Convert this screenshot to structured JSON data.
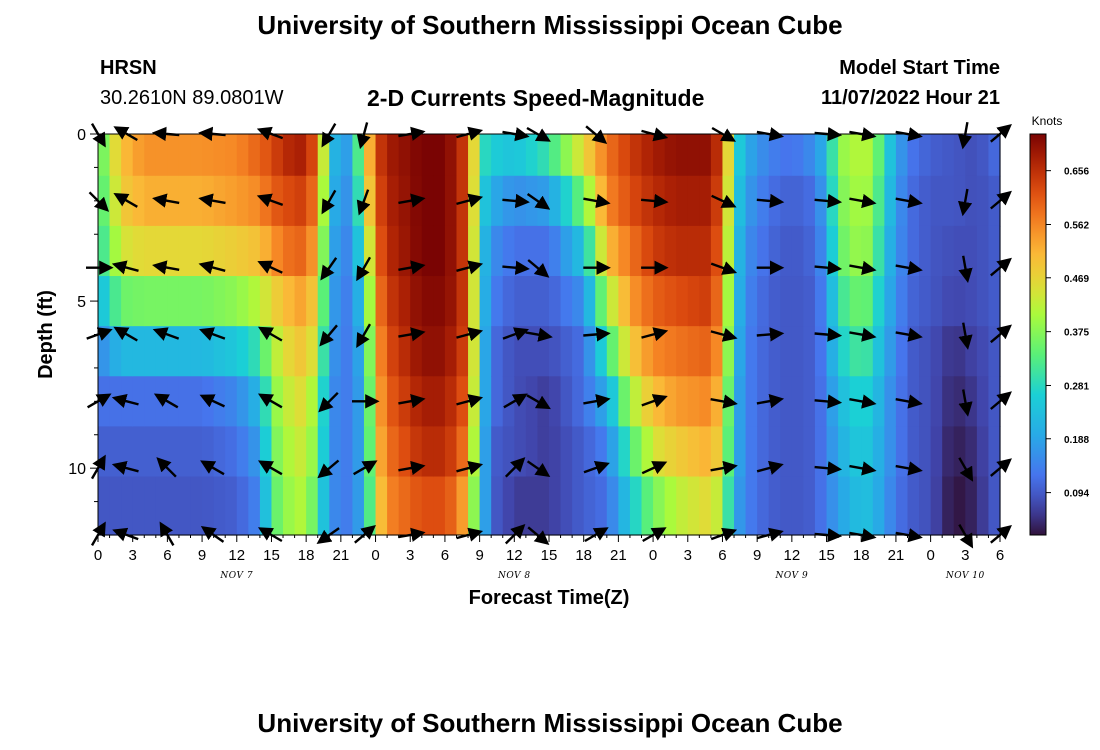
{
  "header": {
    "title": "University of Southern Mississippi Ocean Cube",
    "station": "HRSN",
    "location": "30.2610N  89.0801W",
    "subtitle": "2-D Currents Speed-Magnitude",
    "model_start_label": "Model Start Time",
    "model_start_value": "11/07/2022 Hour 21"
  },
  "footer": {
    "title": "University of Southern Mississippi Ocean Cube"
  },
  "colors": {
    "arrow": "#000000",
    "background": "#ffffff"
  },
  "chart_data": {
    "type": "heatmap",
    "xlabel": "Forecast Time(Z)",
    "ylabel": "Depth (ft)",
    "x_tick_labels": [
      "0",
      "3",
      "6",
      "9",
      "12",
      "15",
      "18",
      "21",
      "0",
      "3",
      "6",
      "9",
      "12",
      "15",
      "18",
      "21",
      "0",
      "3",
      "6",
      "9",
      "12",
      "15",
      "18",
      "21",
      "0",
      "3",
      "6"
    ],
    "x_range_hours": [
      0,
      78
    ],
    "date_labels": [
      {
        "label": "NOV 7",
        "hour": 12
      },
      {
        "label": "NOV 8",
        "hour": 36
      },
      {
        "label": "NOV 9",
        "hour": 60
      },
      {
        "label": "NOV 10",
        "hour": 75
      }
    ],
    "y_ticks": [
      0,
      5,
      10
    ],
    "ylim": [
      0,
      12
    ],
    "y_inverted": true,
    "colorbar": {
      "unit": "Knots",
      "ticks": [
        0.094,
        0.188,
        0.281,
        0.375,
        0.469,
        0.562,
        0.656
      ],
      "range": [
        0.02,
        0.72
      ]
    },
    "depths_ft": [
      0.5,
      2.0,
      3.5,
      5.0,
      6.5,
      8.0,
      9.5,
      11.0
    ],
    "time_profile": [
      {
        "h": 0,
        "v": [
          0.32,
          0.3,
          0.28,
          0.22,
          0.15,
          0.12,
          0.1,
          0.09
        ]
      },
      {
        "h": 2,
        "v": [
          0.5,
          0.48,
          0.44,
          0.35,
          0.22,
          0.12,
          0.1,
          0.09
        ]
      },
      {
        "h": 4,
        "v": [
          0.55,
          0.52,
          0.46,
          0.36,
          0.22,
          0.12,
          0.1,
          0.09
        ]
      },
      {
        "h": 9,
        "v": [
          0.55,
          0.52,
          0.46,
          0.36,
          0.22,
          0.12,
          0.1,
          0.09
        ]
      },
      {
        "h": 12,
        "v": [
          0.56,
          0.54,
          0.48,
          0.38,
          0.25,
          0.15,
          0.12,
          0.1
        ]
      },
      {
        "h": 14,
        "v": [
          0.6,
          0.56,
          0.5,
          0.42,
          0.3,
          0.22,
          0.18,
          0.15
        ]
      },
      {
        "h": 15,
        "v": [
          0.62,
          0.6,
          0.54,
          0.46,
          0.4,
          0.36,
          0.34,
          0.32
        ]
      },
      {
        "h": 16,
        "v": [
          0.66,
          0.62,
          0.58,
          0.5,
          0.45,
          0.42,
          0.4,
          0.38
        ]
      },
      {
        "h": 18,
        "v": [
          0.68,
          0.64,
          0.6,
          0.54,
          0.5,
          0.46,
          0.44,
          0.42
        ]
      },
      {
        "h": 19,
        "v": [
          0.58,
          0.55,
          0.5,
          0.45,
          0.4,
          0.36,
          0.34,
          0.3
        ]
      },
      {
        "h": 20,
        "v": [
          0.28,
          0.26,
          0.24,
          0.22,
          0.2,
          0.18,
          0.18,
          0.18
        ]
      },
      {
        "h": 21,
        "v": [
          0.14,
          0.13,
          0.12,
          0.12,
          0.12,
          0.12,
          0.12,
          0.12
        ]
      },
      {
        "h": 22,
        "v": [
          0.22,
          0.2,
          0.18,
          0.16,
          0.15,
          0.15,
          0.15,
          0.15
        ]
      },
      {
        "h": 23,
        "v": [
          0.42,
          0.38,
          0.3,
          0.25,
          0.22,
          0.2,
          0.2,
          0.2
        ]
      },
      {
        "h": 24,
        "v": [
          0.62,
          0.6,
          0.58,
          0.55,
          0.52,
          0.5,
          0.48,
          0.45
        ]
      },
      {
        "h": 25,
        "v": [
          0.68,
          0.67,
          0.66,
          0.64,
          0.62,
          0.6,
          0.58,
          0.56
        ]
      },
      {
        "h": 28,
        "v": [
          0.72,
          0.72,
          0.72,
          0.71,
          0.7,
          0.68,
          0.66,
          0.62
        ]
      },
      {
        "h": 30,
        "v": [
          0.72,
          0.72,
          0.72,
          0.71,
          0.7,
          0.68,
          0.66,
          0.62
        ]
      },
      {
        "h": 31,
        "v": [
          0.68,
          0.68,
          0.68,
          0.68,
          0.66,
          0.64,
          0.62,
          0.58
        ]
      },
      {
        "h": 32,
        "v": [
          0.62,
          0.62,
          0.62,
          0.62,
          0.62,
          0.6,
          0.56,
          0.5
        ]
      },
      {
        "h": 33,
        "v": [
          0.3,
          0.28,
          0.26,
          0.26,
          0.26,
          0.26,
          0.26,
          0.26
        ]
      },
      {
        "h": 34,
        "v": [
          0.26,
          0.2,
          0.16,
          0.14,
          0.12,
          0.12,
          0.1,
          0.1
        ]
      },
      {
        "h": 36,
        "v": [
          0.24,
          0.16,
          0.12,
          0.1,
          0.08,
          0.08,
          0.08,
          0.06
        ]
      },
      {
        "h": 39,
        "v": [
          0.3,
          0.18,
          0.12,
          0.1,
          0.08,
          0.06,
          0.06,
          0.06
        ]
      },
      {
        "h": 42,
        "v": [
          0.46,
          0.36,
          0.24,
          0.16,
          0.12,
          0.12,
          0.1,
          0.1
        ]
      },
      {
        "h": 44,
        "v": [
          0.58,
          0.56,
          0.5,
          0.4,
          0.3,
          0.2,
          0.14,
          0.12
        ]
      },
      {
        "h": 46,
        "v": [
          0.64,
          0.62,
          0.58,
          0.54,
          0.48,
          0.4,
          0.32,
          0.25
        ]
      },
      {
        "h": 48,
        "v": [
          0.68,
          0.66,
          0.64,
          0.6,
          0.56,
          0.5,
          0.44,
          0.36
        ]
      },
      {
        "h": 50,
        "v": [
          0.7,
          0.68,
          0.66,
          0.62,
          0.58,
          0.54,
          0.48,
          0.42
        ]
      },
      {
        "h": 53,
        "v": [
          0.7,
          0.68,
          0.66,
          0.64,
          0.6,
          0.56,
          0.52,
          0.46
        ]
      },
      {
        "h": 54,
        "v": [
          0.62,
          0.6,
          0.58,
          0.55,
          0.52,
          0.48,
          0.45,
          0.4
        ]
      },
      {
        "h": 55,
        "v": [
          0.3,
          0.28,
          0.26,
          0.25,
          0.24,
          0.22,
          0.22,
          0.2
        ]
      },
      {
        "h": 56,
        "v": [
          0.2,
          0.18,
          0.16,
          0.15,
          0.14,
          0.14,
          0.14,
          0.14
        ]
      },
      {
        "h": 58,
        "v": [
          0.14,
          0.12,
          0.11,
          0.1,
          0.1,
          0.1,
          0.1,
          0.1
        ]
      },
      {
        "h": 60,
        "v": [
          0.12,
          0.1,
          0.09,
          0.09,
          0.09,
          0.09,
          0.09,
          0.09
        ]
      },
      {
        "h": 62,
        "v": [
          0.16,
          0.12,
          0.11,
          0.1,
          0.1,
          0.1,
          0.1,
          0.1
        ]
      },
      {
        "h": 63,
        "v": [
          0.22,
          0.2,
          0.18,
          0.16,
          0.15,
          0.14,
          0.14,
          0.14
        ]
      },
      {
        "h": 64,
        "v": [
          0.38,
          0.36,
          0.34,
          0.3,
          0.26,
          0.22,
          0.2,
          0.18
        ]
      },
      {
        "h": 66,
        "v": [
          0.42,
          0.41,
          0.4,
          0.36,
          0.32,
          0.28,
          0.26,
          0.24
        ]
      },
      {
        "h": 67,
        "v": [
          0.4,
          0.38,
          0.36,
          0.32,
          0.28,
          0.25,
          0.23,
          0.22
        ]
      },
      {
        "h": 68,
        "v": [
          0.28,
          0.26,
          0.24,
          0.22,
          0.2,
          0.18,
          0.18,
          0.17
        ]
      },
      {
        "h": 69,
        "v": [
          0.2,
          0.18,
          0.17,
          0.16,
          0.15,
          0.14,
          0.14,
          0.13
        ]
      },
      {
        "h": 70,
        "v": [
          0.13,
          0.12,
          0.12,
          0.11,
          0.1,
          0.1,
          0.1,
          0.1
        ]
      },
      {
        "h": 72,
        "v": [
          0.1,
          0.09,
          0.09,
          0.09,
          0.08,
          0.08,
          0.08,
          0.08
        ]
      },
      {
        "h": 74,
        "v": [
          0.09,
          0.09,
          0.08,
          0.07,
          0.05,
          0.04,
          0.03,
          0.02
        ]
      },
      {
        "h": 76,
        "v": [
          0.08,
          0.08,
          0.08,
          0.08,
          0.07,
          0.06,
          0.05,
          0.04
        ]
      },
      {
        "h": 77,
        "v": [
          0.1,
          0.09,
          0.09,
          0.09,
          0.08,
          0.08,
          0.08,
          0.08
        ]
      },
      {
        "h": 78,
        "v": [
          0.12,
          0.1,
          0.1,
          0.1,
          0.1,
          0.1,
          0.1,
          0.1
        ]
      }
    ],
    "vector_depths_ft": [
      0,
      2,
      4,
      6,
      8,
      10,
      12
    ],
    "vector_columns": [
      {
        "h": 0,
        "dirs": [
          -60,
          -45,
          0,
          20,
          30,
          60,
          60
        ]
      },
      {
        "h": 2.5,
        "dirs": [
          150,
          150,
          165,
          150,
          165,
          165,
          160
        ]
      },
      {
        "h": 6,
        "dirs": [
          175,
          170,
          170,
          160,
          150,
          135,
          120
        ]
      },
      {
        "h": 10,
        "dirs": [
          175,
          170,
          165,
          160,
          155,
          150,
          145
        ]
      },
      {
        "h": 15,
        "dirs": [
          160,
          160,
          155,
          150,
          150,
          150,
          150
        ]
      },
      {
        "h": 20,
        "dirs": [
          -120,
          -120,
          -125,
          -130,
          -135,
          -140,
          -145
        ]
      },
      {
        "h": 23,
        "dirs": [
          -105,
          -110,
          -120,
          -120,
          0,
          30,
          40
        ]
      },
      {
        "h": 27,
        "dirs": [
          10,
          10,
          10,
          10,
          10,
          10,
          10
        ]
      },
      {
        "h": 32,
        "dirs": [
          15,
          15,
          15,
          15,
          15,
          15,
          15
        ]
      },
      {
        "h": 36,
        "dirs": [
          -10,
          -5,
          -5,
          20,
          30,
          45,
          45
        ]
      },
      {
        "h": 38,
        "dirs": [
          -30,
          -35,
          -40,
          -10,
          -30,
          -35,
          -40
        ]
      },
      {
        "h": 43,
        "dirs": [
          -40,
          -10,
          0,
          5,
          10,
          20,
          30
        ]
      },
      {
        "h": 48,
        "dirs": [
          -15,
          -5,
          0,
          15,
          20,
          25,
          30
        ]
      },
      {
        "h": 54,
        "dirs": [
          -30,
          -25,
          -20,
          -15,
          -10,
          10,
          20
        ]
      },
      {
        "h": 58,
        "dirs": [
          -10,
          -5,
          0,
          5,
          10,
          15,
          15
        ]
      },
      {
        "h": 63,
        "dirs": [
          -5,
          -5,
          -5,
          -5,
          -5,
          -5,
          -5
        ]
      },
      {
        "h": 66,
        "dirs": [
          -10,
          -10,
          -10,
          -10,
          -10,
          -10,
          -10
        ]
      },
      {
        "h": 70,
        "dirs": [
          -10,
          -10,
          -10,
          -10,
          -10,
          -10,
          -10
        ]
      },
      {
        "h": 75,
        "dirs": [
          -100,
          -100,
          -80,
          -80,
          -80,
          -60,
          -60
        ]
      },
      {
        "h": 78,
        "dirs": [
          40,
          40,
          40,
          40,
          40,
          40,
          40
        ]
      }
    ]
  }
}
